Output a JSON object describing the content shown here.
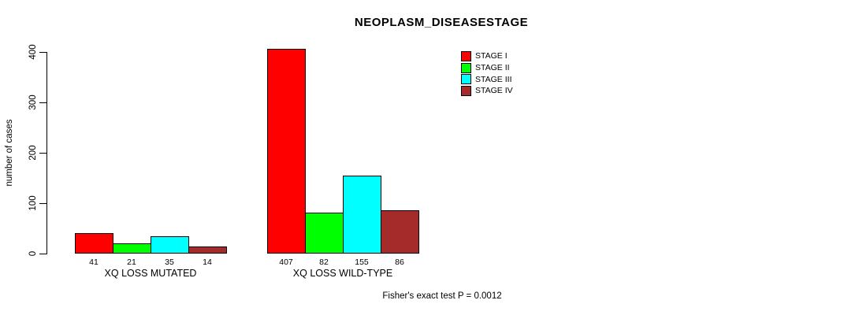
{
  "title": "NEOPLASM_DISEASESTAGE",
  "footer_note": "Fisher's exact test P = 0.0012",
  "chart_data": {
    "type": "bar",
    "title": "NEOPLASM_DISEASESTAGE",
    "xlabel": "",
    "ylabel": "number of cases",
    "ylim": [
      0,
      400
    ],
    "yticks": [
      0,
      100,
      200,
      300,
      400
    ],
    "grid": false,
    "legend_position": "top-right",
    "categories": [
      "XQ LOSS MUTATED",
      "XQ LOSS WILD-TYPE"
    ],
    "series": [
      {
        "name": "STAGE I",
        "color": "#ff0000",
        "values": [
          41,
          407
        ]
      },
      {
        "name": "STAGE II",
        "color": "#00ff00",
        "values": [
          21,
          82
        ]
      },
      {
        "name": "STAGE III",
        "color": "#00ffff",
        "values": [
          35,
          155
        ]
      },
      {
        "name": "STAGE IV",
        "color": "#a52a2a",
        "values": [
          14,
          86
        ]
      }
    ],
    "bar_value_labels": [
      [
        41,
        21,
        35,
        14
      ],
      [
        407,
        82,
        155,
        86
      ]
    ],
    "annotation": "Fisher's exact test P = 0.0012"
  }
}
